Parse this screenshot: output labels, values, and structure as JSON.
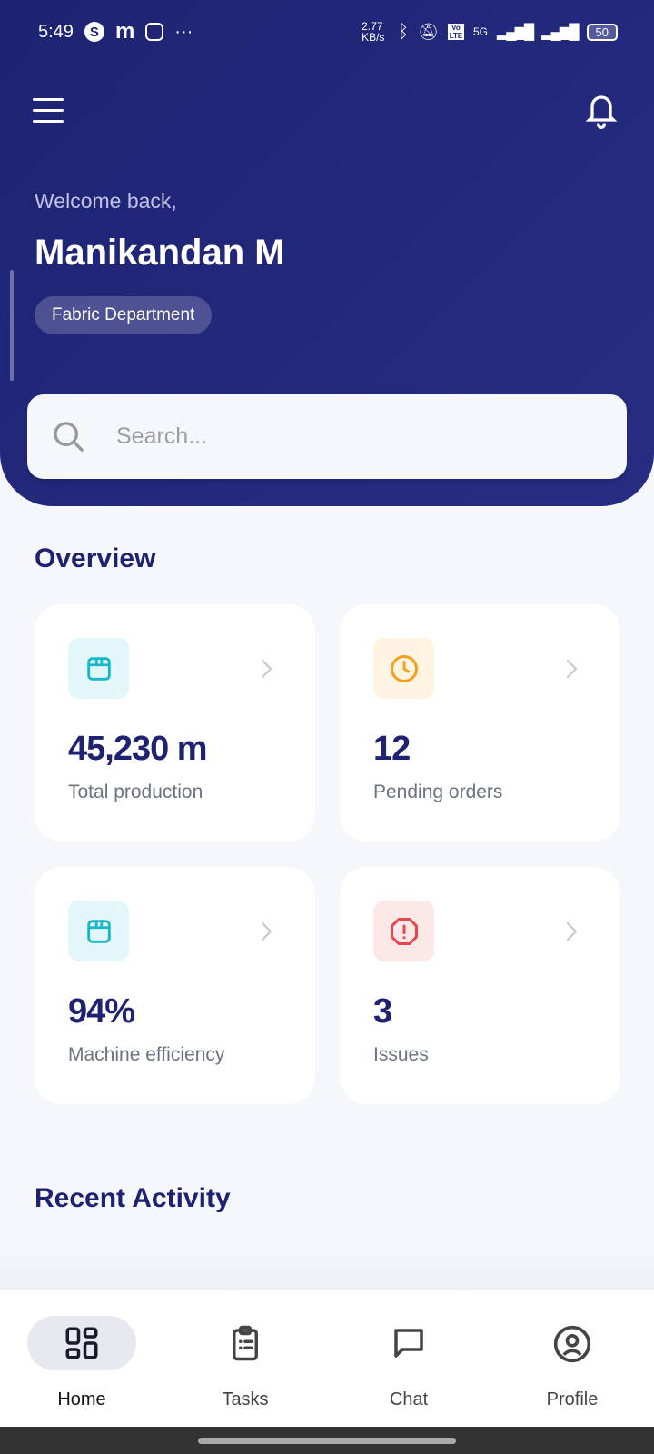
{
  "status_bar": {
    "time": "5:49",
    "app_icons": [
      "s-icon",
      "m-icon",
      "instagram-icon"
    ],
    "more": "···",
    "net_speed": "2.77 KB/s",
    "network": "5G",
    "volte": "Vo LTE",
    "battery": "50"
  },
  "header": {
    "welcome": "Welcome back,",
    "name": "Manikandan M",
    "department": "Fabric Department",
    "search_placeholder": "Search..."
  },
  "overview": {
    "title": "Overview",
    "cards": [
      {
        "value": "45,230 m",
        "label": "Total production",
        "icon": "box-icon",
        "color": "#14b8c8",
        "bg": "#e3f6fa"
      },
      {
        "value": "12",
        "label": "Pending orders",
        "icon": "clock-icon",
        "color": "#f2a11f",
        "bg": "#fff3e2"
      },
      {
        "value": "94%",
        "label": "Machine efficiency",
        "icon": "box-icon",
        "color": "#14b8c8",
        "bg": "#e3f6fa"
      },
      {
        "value": "3",
        "label": "Issues",
        "icon": "alert-octagon-icon",
        "color": "#e5484d",
        "bg": "#fde8e8"
      }
    ]
  },
  "recent_activity": {
    "title": "Recent Activity"
  },
  "bottom_nav": [
    {
      "label": "Home",
      "active": true
    },
    {
      "label": "Tasks"
    },
    {
      "label": "Chat"
    },
    {
      "label": "Profile"
    }
  ]
}
